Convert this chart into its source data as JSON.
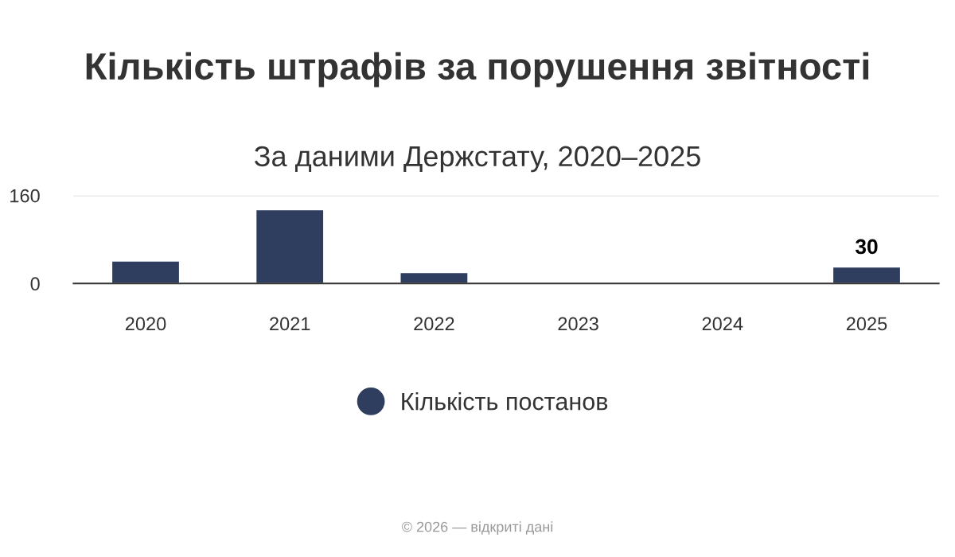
{
  "chart_data": {
    "type": "bar",
    "title": "Кількість штрафів за порушення звітності",
    "subtitle": "За даними Держстату, 2020–2025",
    "categories": [
      "2020",
      "2021",
      "2022",
      "2023",
      "2024",
      "2025"
    ],
    "series": [
      {
        "name": "Кількість постанов",
        "color": "#2f3e5e",
        "values": [
          41,
          134,
          20,
          null,
          null,
          30
        ],
        "value_labels": [
          null,
          null,
          null,
          null,
          null,
          "30"
        ]
      }
    ],
    "ylim": [
      0,
      160
    ],
    "yticks": [
      0,
      160
    ],
    "grid": "y",
    "legend": "bottom",
    "marker": "circle",
    "annotations": [
      "© 2026 — відкриті дані"
    ]
  }
}
